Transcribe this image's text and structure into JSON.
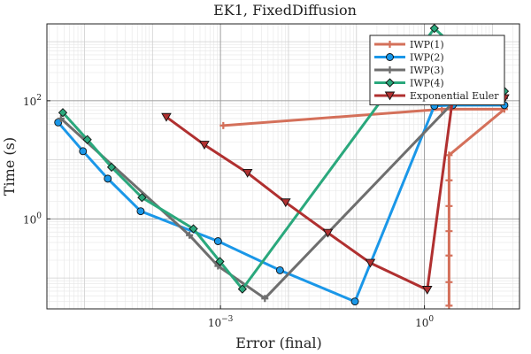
{
  "chart_data": {
    "type": "line",
    "title": "EK1, FixedDiffusion",
    "xlabel": "Error (final)",
    "ylabel": "Time (s)",
    "xscale": "log",
    "yscale": "log",
    "xlim": [
      2.8e-06,
      25
    ],
    "ylim": [
      0.03,
      2000
    ],
    "grid": true,
    "legend_position": "top-right",
    "xticks": [
      {
        "value": 0.001,
        "base": "10",
        "exp": "−3"
      },
      {
        "value": 1,
        "base": "10",
        "exp": "0"
      }
    ],
    "yticks": [
      {
        "value": 1,
        "base": "10",
        "exp": "0"
      },
      {
        "value": 100,
        "base": "10",
        "exp": "2"
      }
    ],
    "series": [
      {
        "name": "IWP(1)",
        "color": "#d4705a",
        "marker": "cross",
        "points": [
          [
            0.0011,
            38
          ],
          [
            1.8,
            72
          ],
          [
            15,
            72
          ],
          [
            2.3,
            12
          ],
          [
            2.3,
            4.5
          ],
          [
            2.3,
            1.65
          ],
          [
            2.3,
            0.62
          ],
          [
            2.3,
            0.24
          ],
          [
            2.3,
            0.085
          ],
          [
            2.3,
            0.034
          ]
        ]
      },
      {
        "name": "IWP(2)",
        "color": "#1a97e8",
        "marker": "circle",
        "points": [
          [
            4.1e-06,
            43
          ],
          [
            9.5e-06,
            14
          ],
          [
            2.2e-05,
            4.8
          ],
          [
            6.7e-05,
            1.35
          ],
          [
            0.00092,
            0.42
          ],
          [
            0.0075,
            0.135
          ],
          [
            0.095,
            0.04
          ],
          [
            1.4,
            82
          ],
          [
            2.6,
            84
          ],
          [
            15,
            84
          ]
        ]
      },
      {
        "name": "IWP(3)",
        "color": "#6e6e6e",
        "marker": "cross",
        "points": [
          [
            4.5e-06,
            50
          ],
          [
            0.00035,
            0.53
          ],
          [
            0.00092,
            0.16
          ],
          [
            0.0045,
            0.045
          ],
          [
            2.8,
            100
          ],
          [
            15,
            110
          ]
        ]
      },
      {
        "name": "IWP(4)",
        "color": "#2aa87c",
        "marker": "diamond",
        "points": [
          [
            4.8e-06,
            63
          ],
          [
            1.1e-05,
            22
          ],
          [
            2.5e-05,
            7.5
          ],
          [
            7e-05,
            2.3
          ],
          [
            0.0004,
            0.68
          ],
          [
            0.00098,
            0.19
          ],
          [
            0.0021,
            0.065
          ],
          [
            1.4,
            1680
          ],
          [
            15,
            145
          ]
        ]
      },
      {
        "name": "Exponential Euler",
        "color": "#b03030",
        "marker": "triangle-down",
        "points": [
          [
            0.00016,
            53
          ],
          [
            0.00058,
            18
          ],
          [
            0.0025,
            6.0
          ],
          [
            0.0091,
            1.9
          ],
          [
            0.038,
            0.58
          ],
          [
            0.16,
            0.18
          ],
          [
            1.1,
            0.063
          ],
          [
            2.6,
            110
          ],
          [
            15,
            110
          ]
        ]
      }
    ]
  }
}
